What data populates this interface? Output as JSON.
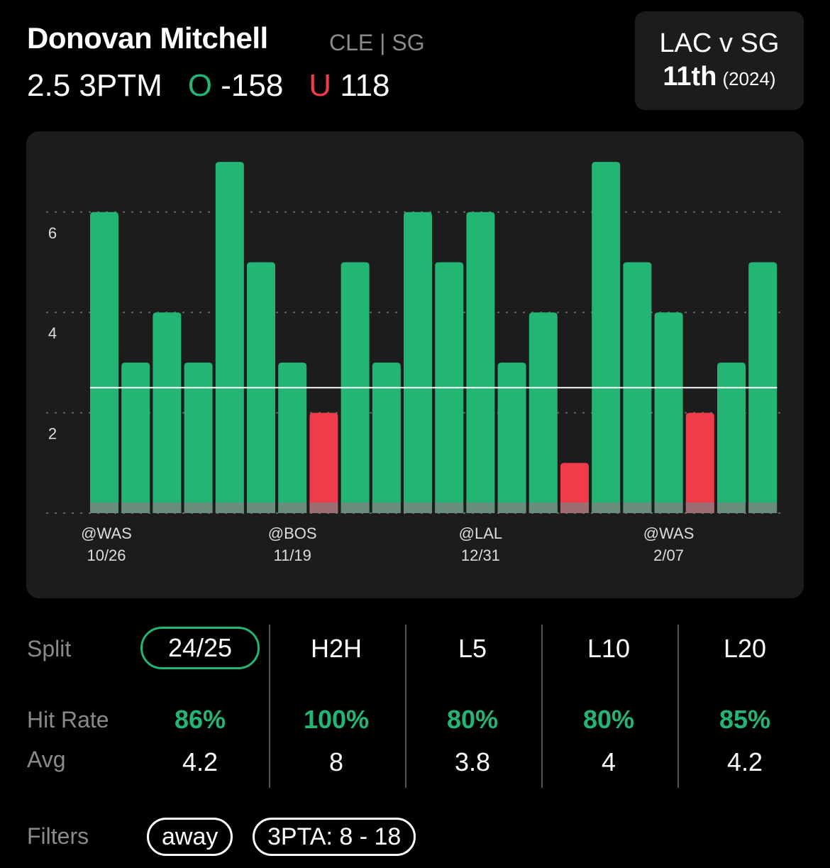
{
  "header": {
    "player": "Donovan Mitchell",
    "team": "CLE | SG",
    "line": "2.5 3PTM",
    "over_label": "O",
    "over_odds": "-158",
    "under_label": "U",
    "under_odds": "118"
  },
  "matchup": {
    "title": "LAC v SG",
    "rank": "11th",
    "season": "(2024)"
  },
  "colors": {
    "hit": "#23b574",
    "miss": "#ef3b4a",
    "panel": "#1c1c1c"
  },
  "chart_data": {
    "type": "bar",
    "values": [
      6,
      3,
      4,
      3,
      7,
      5,
      3,
      2,
      5,
      3,
      6,
      5,
      6,
      3,
      4,
      1,
      7,
      5,
      4,
      2,
      3,
      5
    ],
    "threshold": 2.5,
    "yticks": [
      2,
      4,
      6
    ],
    "ylim": [
      0,
      7
    ],
    "grid": true,
    "xlabels": [
      {
        "index": 0,
        "opp": "@WAS",
        "date": "10/26"
      },
      {
        "index": 6,
        "opp": "@BOS",
        "date": "11/19"
      },
      {
        "index": 12,
        "opp": "@LAL",
        "date": "12/31"
      },
      {
        "index": 18,
        "opp": "@WAS",
        "date": "2/07"
      }
    ]
  },
  "stats": {
    "labels": {
      "split": "Split",
      "hit": "Hit Rate",
      "avg": "Avg"
    },
    "columns": [
      {
        "split": "24/25",
        "hit": "86%",
        "avg": "4.2",
        "selected": true
      },
      {
        "split": "H2H",
        "hit": "100%",
        "avg": "8"
      },
      {
        "split": "L5",
        "hit": "80%",
        "avg": "3.8"
      },
      {
        "split": "L10",
        "hit": "80%",
        "avg": "4"
      },
      {
        "split": "L20",
        "hit": "85%",
        "avg": "4.2"
      }
    ]
  },
  "filters": {
    "label": "Filters",
    "chips": [
      "away",
      "3PTA: 8 - 18"
    ]
  }
}
